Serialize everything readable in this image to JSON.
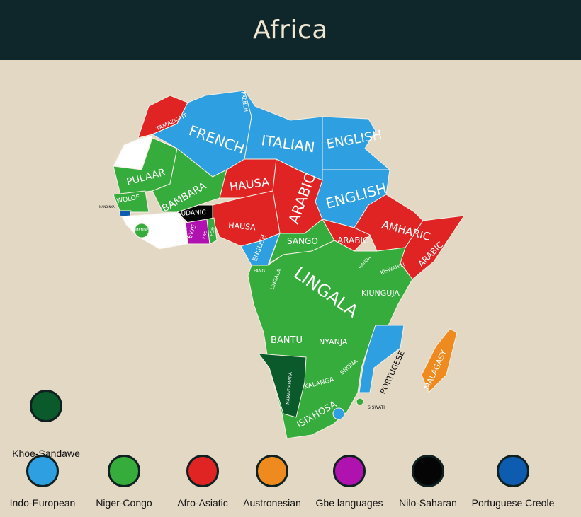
{
  "title": "Africa",
  "colors": {
    "header": "#0f262b",
    "background": "#e3d8c4",
    "Indo-European": "#2e9fe0",
    "Niger-Congo": "#36ac3c",
    "Afro-Asiatic": "#e02424",
    "Austronesian": "#ee8a1e",
    "Gbe languages": "#b012b0",
    "Nilo-Saharan": "#050505",
    "Portuguese Creole": "#0d5cb0",
    "Khoe-Sandawe": "#0b5a2c",
    "unclassified": "#ffffff"
  },
  "labels": {
    "tamazight": "TAMAZIGHT",
    "french_small": "FRENCH",
    "french": "FRENCH",
    "italian": "ITALIAN",
    "english_egypt": "ENGLISH",
    "english_sudan": "ENGLISH",
    "pulaar": "PULAAR",
    "bambara": "BAMBARA",
    "wolof": "WOLOF",
    "mandinka": "MANDINKA",
    "mende": "MENDE",
    "sudanic": "SUDANIC",
    "ewe": "EWE",
    "ewe_small": "EWE",
    "fon": "FON",
    "hausa_niger": "HAUSA",
    "hausa_nigeria": "HAUSA",
    "arabic_chad": "ARABIC",
    "arabic_ssudan": "ARABIC",
    "arabic_somalia": "ARABIC",
    "amharic": "AMHARIC",
    "english_cameroon": "ENGLISH",
    "sango": "SANGO",
    "fang": "FANG",
    "lingala_small": "LINGALA",
    "lingala": "LINGALA",
    "ganda": "GANDA",
    "kiswahili": "KISWAHILI",
    "kiunguja": "KIUNGUJA",
    "bantu": "BANTU",
    "nyanja": "NYANJA",
    "shona": "SHONA",
    "kalanga": "KALANGA",
    "nama_damara": "NAMA/DAMARA",
    "isixhosa": "ISIXHOSA",
    "portugese": "PORTUGESE",
    "siswati": "SISWATI",
    "malagasy": "MALAGASY"
  },
  "legend": [
    {
      "name": "Khoe-Sandawe",
      "color": "#0b5a2c"
    },
    {
      "name": "Indo-European",
      "color": "#2e9fe0"
    },
    {
      "name": "Niger-Congo",
      "color": "#36ac3c"
    },
    {
      "name": "Afro-Asiatic",
      "color": "#e02424"
    },
    {
      "name": "Austronesian",
      "color": "#ee8a1e"
    },
    {
      "name": "Gbe languages",
      "color": "#b012b0"
    },
    {
      "name": "Nilo-Saharan",
      "color": "#050505"
    },
    {
      "name": "Portuguese Creole",
      "color": "#0d5cb0"
    }
  ]
}
